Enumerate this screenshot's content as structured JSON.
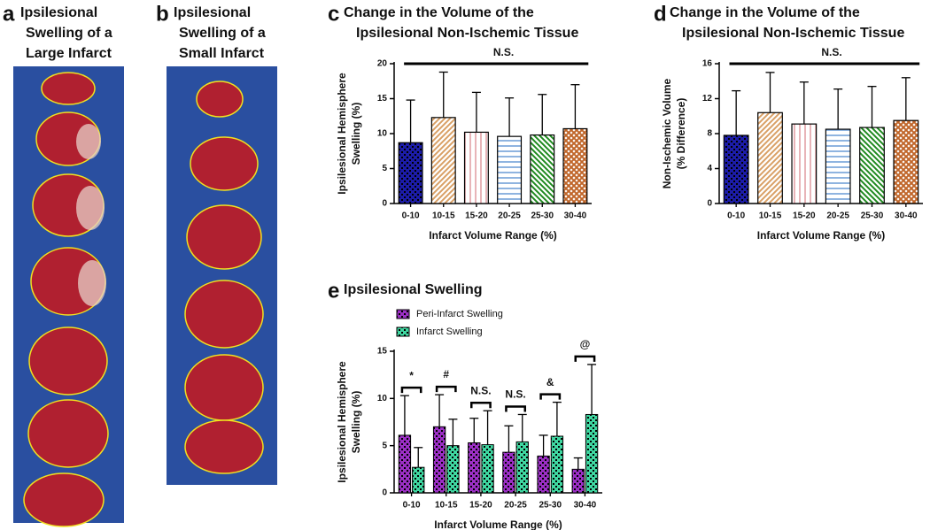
{
  "panels": [
    {
      "letter": "a",
      "title": [
        "Ipsilesional",
        "Swelling of  a",
        "Large Infarct"
      ]
    },
    {
      "letter": "b",
      "title": [
        "Ipsilesional",
        "Swelling of a",
        "Small Infarct"
      ]
    }
  ],
  "chart_data": [
    {
      "type": "bar",
      "panel": "c",
      "title": [
        "Change in the Volume of the",
        "Ipsilesional Non-Ischemic Tissue"
      ],
      "y_label": [
        "Ipsilesional Hemisphere",
        "Swelling (%)"
      ],
      "x_label": "Infarct Volume Range (%)",
      "categories": [
        "0-10",
        "10-15",
        "15-20",
        "20-25",
        "25-30",
        "30-40"
      ],
      "values": [
        8.7,
        12.3,
        10.2,
        9.6,
        9.8,
        10.7
      ],
      "errors": [
        6.1,
        6.5,
        5.7,
        5.5,
        5.8,
        6.3
      ],
      "colors": [
        "#1c1ca8",
        "#d9a066",
        "#e8b4b8",
        "#8fb4e0",
        "#1f8a1f",
        "#c0662a"
      ],
      "patterns": [
        "checker",
        "diag",
        "vert",
        "horiz",
        "diag-back",
        "cross"
      ],
      "ylim": [
        0,
        20
      ],
      "yticks": [
        0,
        5,
        10,
        15,
        20
      ],
      "annotation": "N.S."
    },
    {
      "type": "bar",
      "panel": "d",
      "title": [
        "Change in the Volume of the",
        "Ipsilesional Non-Ischemic Tissue"
      ],
      "y_label": [
        "Non-Ischemic Volume",
        "(% Difference)"
      ],
      "x_label": "Infarct Volume Range (%)",
      "categories": [
        "0-10",
        "10-15",
        "15-20",
        "20-25",
        "25-30",
        "30-40"
      ],
      "values": [
        7.8,
        10.4,
        9.1,
        8.5,
        8.7,
        9.5
      ],
      "errors": [
        5.1,
        4.6,
        4.8,
        4.6,
        4.7,
        4.9
      ],
      "colors": [
        "#1c1ca8",
        "#d9a066",
        "#e8b4b8",
        "#8fb4e0",
        "#1f8a1f",
        "#c0662a"
      ],
      "patterns": [
        "checker",
        "diag",
        "vert",
        "horiz",
        "diag-back",
        "cross"
      ],
      "ylim": [
        0,
        16
      ],
      "yticks": [
        0,
        4,
        8,
        12,
        16
      ],
      "annotation": "N.S."
    },
    {
      "type": "grouped-bar",
      "panel": "e",
      "title": [
        "Ipsilesional Swelling"
      ],
      "y_label": [
        "Ipsilesional Hemisphere",
        "Swelling (%)"
      ],
      "x_label": "Infarct Volume Range (%)",
      "categories": [
        "0-10",
        "10-15",
        "15-20",
        "20-25",
        "25-30",
        "30-40"
      ],
      "series": [
        {
          "name": "Peri-Infarct Swelling",
          "color": "#9b2fc4",
          "pattern": "checker",
          "values": [
            6.1,
            7.0,
            5.3,
            4.3,
            3.9,
            2.5
          ],
          "errors": [
            4.2,
            3.4,
            2.6,
            2.8,
            2.2,
            1.2
          ]
        },
        {
          "name": "Infarct Swelling",
          "color": "#3fd6a0",
          "pattern": "checker",
          "values": [
            2.7,
            5.0,
            5.1,
            5.4,
            6.0,
            8.3
          ],
          "errors": [
            2.1,
            2.8,
            3.6,
            2.9,
            3.6,
            5.3
          ]
        }
      ],
      "annotations": [
        "*",
        "#",
        "N.S.",
        "N.S.",
        "&",
        "@"
      ],
      "ylim": [
        0,
        15
      ],
      "yticks": [
        0,
        5,
        10,
        15
      ]
    }
  ]
}
